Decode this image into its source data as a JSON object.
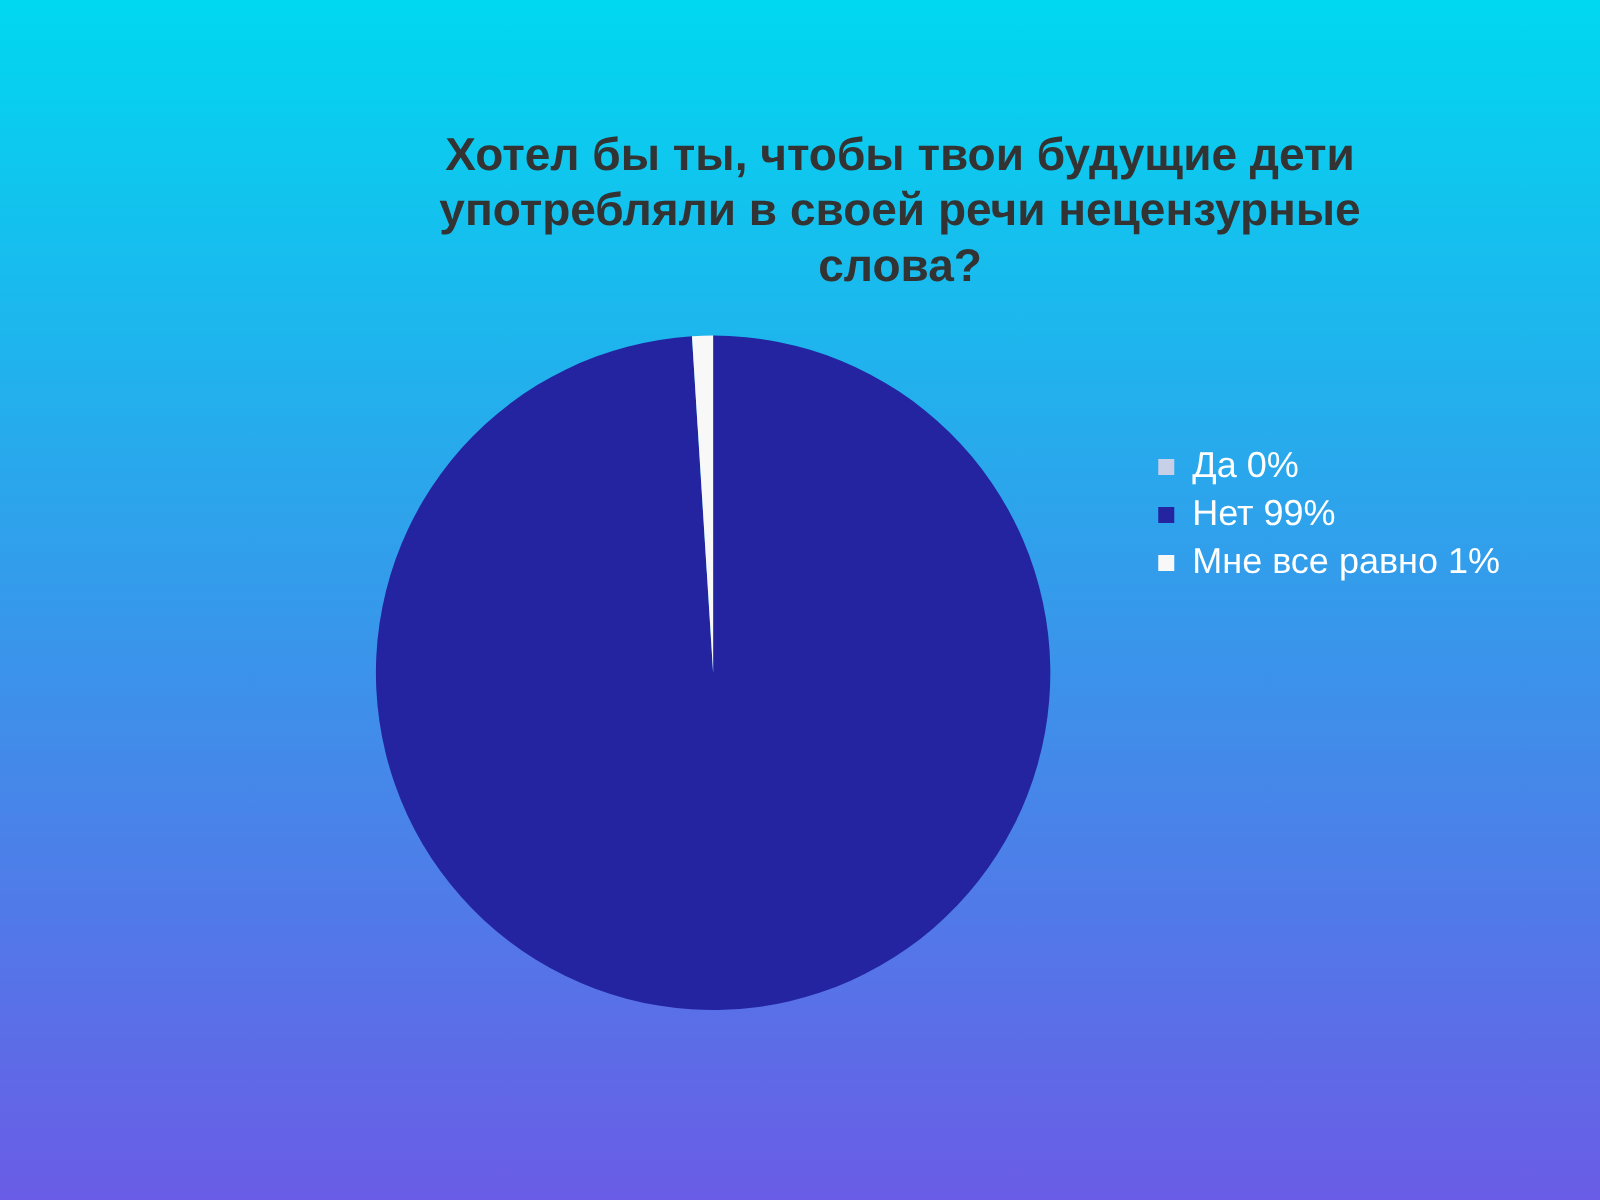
{
  "chart_data": {
    "type": "pie",
    "title": "Хотел бы ты, чтобы твои будущие дети употребляли в своей речи нецензурные слова?",
    "categories": [
      "Да 0%",
      "Нет 99%",
      "Мне все равно 1%"
    ],
    "values": [
      0,
      99,
      1
    ],
    "colors": [
      "#c8d0e8",
      "#2424a0",
      "#f8f8f8"
    ],
    "legend": "right"
  }
}
